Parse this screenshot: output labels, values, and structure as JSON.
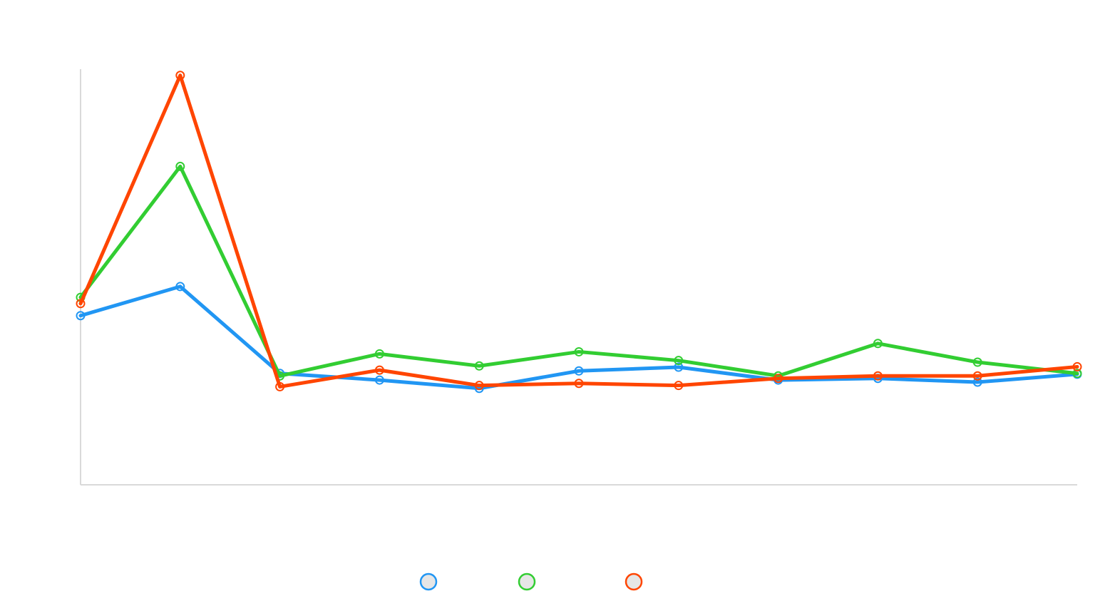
{
  "chart_data": {
    "type": "line",
    "x": [
      0,
      1,
      2,
      3,
      4,
      5,
      6,
      7,
      8,
      9,
      10
    ],
    "ylim": [
      0,
      100
    ],
    "grid": false,
    "legend_position": "bottom-center",
    "series": [
      {
        "color": "#2196F3",
        "values": [
          40.7,
          47.7,
          26.8,
          25.2,
          23.2,
          27.4,
          28.3,
          25.2,
          25.6,
          24.7,
          26.6
        ]
      },
      {
        "color": "#32CD32",
        "values": [
          45.1,
          76.6,
          26.2,
          31.5,
          28.6,
          32.0,
          29.9,
          26.2,
          34.0,
          29.5,
          26.8
        ]
      },
      {
        "color": "#FF4500",
        "values": [
          43.6,
          98.5,
          23.6,
          27.6,
          23.9,
          24.4,
          23.9,
          25.6,
          26.2,
          26.2,
          28.4
        ]
      }
    ]
  }
}
